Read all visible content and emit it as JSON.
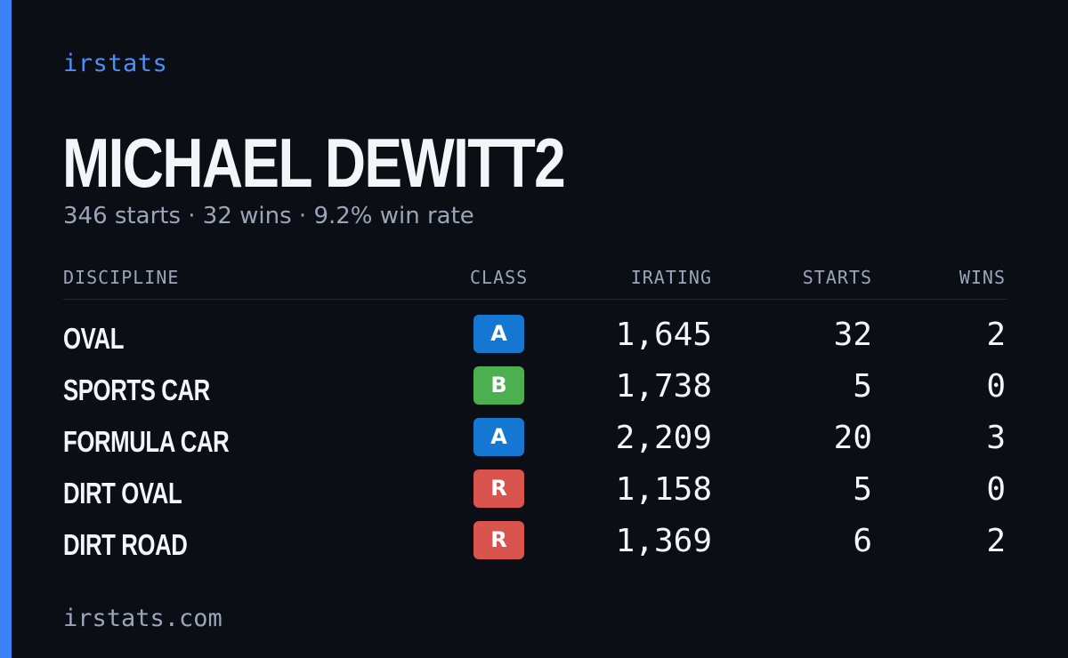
{
  "brand": "irstats",
  "driver": {
    "name": "MICHAEL DEWITT2",
    "summary": "346 starts · 32 wins · 9.2% win rate"
  },
  "table": {
    "headers": {
      "discipline": "DISCIPLINE",
      "class": "CLASS",
      "irating": "IRATING",
      "starts": "STARTS",
      "wins": "WINS"
    },
    "rows": [
      {
        "discipline": "OVAL",
        "class": "A",
        "class_color": "#1677d2",
        "irating": "1,645",
        "starts": "32",
        "wins": "2"
      },
      {
        "discipline": "SPORTS CAR",
        "class": "B",
        "class_color": "#4caf50",
        "irating": "1,738",
        "starts": "5",
        "wins": "0"
      },
      {
        "discipline": "FORMULA CAR",
        "class": "A",
        "class_color": "#1677d2",
        "irating": "2,209",
        "starts": "20",
        "wins": "3"
      },
      {
        "discipline": "DIRT OVAL",
        "class": "R",
        "class_color": "#d9534f",
        "irating": "1,158",
        "starts": "5",
        "wins": "0"
      },
      {
        "discipline": "DIRT ROAD",
        "class": "R",
        "class_color": "#d9534f",
        "irating": "1,369",
        "starts": "6",
        "wins": "2"
      }
    ]
  },
  "footer": "irstats.com",
  "colors": {
    "background": "#0b0e14",
    "accent": "#3b82f6",
    "muted_text": "#9aa6b8"
  }
}
